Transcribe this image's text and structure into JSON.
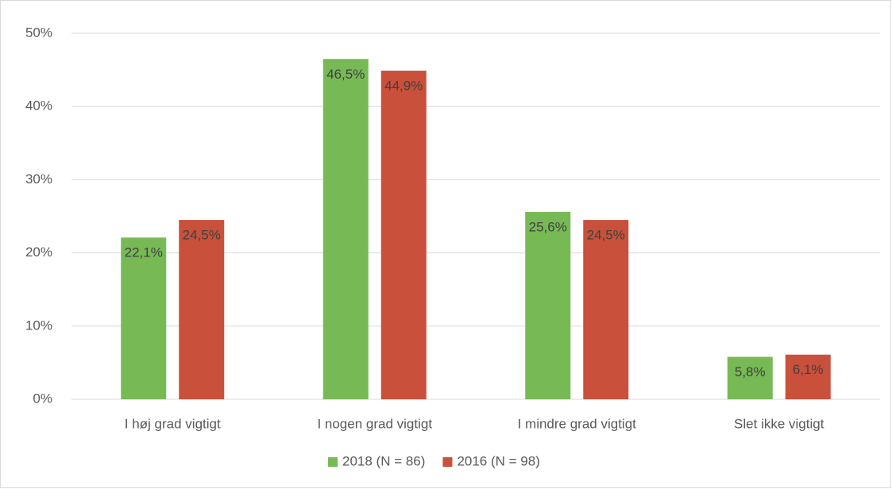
{
  "chart_data": {
    "type": "bar",
    "categories": [
      "I høj grad vigtigt",
      "I nogen grad vigtigt",
      "I mindre grad vigtigt",
      "Slet ikke vigtigt"
    ],
    "series": [
      {
        "name": "2018 (N = 86)",
        "color": "#77b955",
        "values": [
          22.1,
          46.5,
          25.6,
          5.8
        ],
        "value_labels": [
          "22,1%",
          "46,5%",
          "25,6%",
          "5,8%"
        ]
      },
      {
        "name": "2016 (N = 98)",
        "color": "#c9503a",
        "values": [
          24.5,
          44.9,
          24.5,
          6.1
        ],
        "value_labels": [
          "24,5%",
          "44,9%",
          "24,5%",
          "6,1%"
        ]
      }
    ],
    "ylim": [
      0,
      50
    ],
    "yticks": [
      {
        "value": 0,
        "label": "0%"
      },
      {
        "value": 10,
        "label": "10%"
      },
      {
        "value": 20,
        "label": "20%"
      },
      {
        "value": 30,
        "label": "30%"
      },
      {
        "value": 40,
        "label": "40%"
      },
      {
        "value": 50,
        "label": "50%"
      }
    ],
    "grid": true,
    "legend": "bottom"
  }
}
